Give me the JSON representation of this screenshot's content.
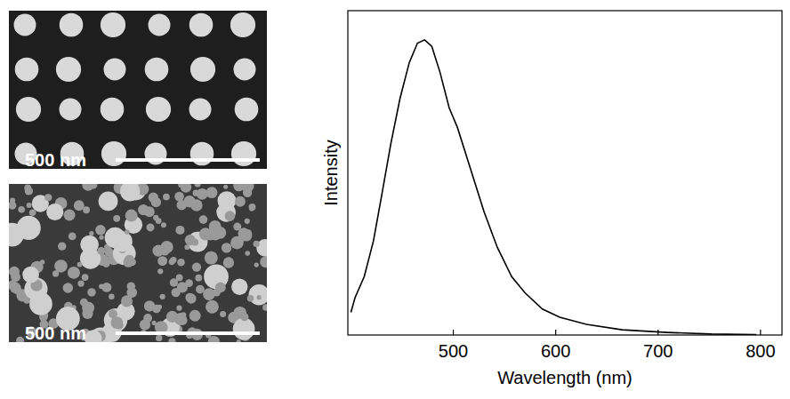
{
  "chart_data": {
    "type": "line",
    "x": [
      400,
      404,
      413,
      422,
      430,
      439,
      448,
      457,
      465,
      472,
      479,
      487,
      496,
      504,
      517,
      530,
      543,
      557,
      570,
      587,
      604,
      630,
      665,
      709,
      752,
      796
    ],
    "values": [
      0.07,
      0.115,
      0.18,
      0.29,
      0.43,
      0.59,
      0.73,
      0.84,
      0.9,
      0.91,
      0.89,
      0.81,
      0.7,
      0.64,
      0.51,
      0.38,
      0.27,
      0.18,
      0.13,
      0.08,
      0.055,
      0.033,
      0.016,
      0.008,
      0.003,
      0.001
    ],
    "color": "#000000",
    "xlim": [
      397,
      821
    ],
    "ylim": [
      0,
      1
    ],
    "xticks": [
      500,
      600,
      700,
      800
    ],
    "tick_labels": "x",
    "x_label": "Wavelength (nm)",
    "y_label": "Intensity"
  },
  "images": [
    {
      "scale_bar": "500 nm"
    },
    {
      "scale_bar": "500 nm"
    }
  ]
}
